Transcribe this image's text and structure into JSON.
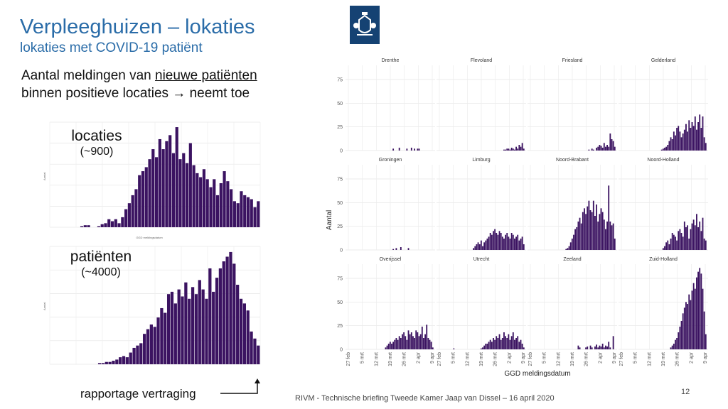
{
  "slide": {
    "title": "Verpleeghuizen – lokaties",
    "subtitle": "lokaties met COVID-19 patiënt",
    "lead_prefix": "Aantal meldingen van ",
    "lead_underlined": "nieuwe patiënten",
    "lead_line2": "binnen positieve locaties → neemt toe",
    "rapportage_label": "rapportage vertraging",
    "footer": "RIVM - Technische briefing Tweede Kamer Jaap van Dissel – 16 april 2020",
    "page_number": "12"
  },
  "colors": {
    "bar": "#3b1361",
    "title": "#2a6ca8",
    "logo": "#154273"
  },
  "chart_data": [
    {
      "type": "bar",
      "id": "locaties",
      "label": "locaties",
      "sublabel": "(~900)",
      "ylabel": "Aantal",
      "xlabel": "GGD meldingsdatum",
      "values": [
        0,
        0,
        0,
        0,
        0,
        0,
        0,
        0,
        0,
        1,
        2,
        2,
        0,
        0,
        1,
        3,
        4,
        8,
        6,
        8,
        4,
        10,
        18,
        24,
        32,
        38,
        52,
        56,
        60,
        68,
        78,
        70,
        88,
        78,
        86,
        92,
        74,
        100,
        68,
        74,
        64,
        84,
        62,
        54,
        50,
        58,
        48,
        40,
        48,
        32,
        44,
        56,
        46,
        38,
        26,
        24,
        36,
        32,
        30,
        28,
        20,
        26
      ]
    },
    {
      "type": "bar",
      "id": "patienten",
      "label": "patiënten",
      "sublabel": "(~4000)",
      "ylabel": "Aantal",
      "xlabel": "",
      "values": [
        0,
        0,
        0,
        0,
        0,
        0,
        0,
        0,
        0,
        0,
        0,
        0,
        0,
        0,
        1,
        1,
        2,
        2,
        3,
        4,
        6,
        7,
        6,
        10,
        14,
        16,
        18,
        26,
        30,
        34,
        32,
        40,
        48,
        44,
        60,
        62,
        52,
        64,
        58,
        70,
        56,
        66,
        60,
        72,
        64,
        56,
        82,
        62,
        74,
        82,
        88,
        92,
        96,
        86,
        68,
        56,
        52,
        46,
        28,
        22,
        16
      ]
    },
    {
      "type": "bar",
      "id": "provinces",
      "ylabel": "Aantal",
      "xlabel": "GGD meldingsdatum",
      "yticks": [
        "0",
        "25",
        "50",
        "75"
      ],
      "xticks": [
        "27 feb",
        "5 mrt",
        "12 mrt",
        "19 mrt",
        "26 mrt",
        "2 apr",
        "9 apr"
      ],
      "panels": [
        {
          "name": "Drenthe",
          "values": [
            0,
            0,
            0,
            0,
            0,
            0,
            0,
            0,
            0,
            0,
            0,
            0,
            0,
            0,
            0,
            0,
            0,
            0,
            0,
            0,
            0,
            0,
            0,
            0,
            0,
            0,
            0,
            0,
            0,
            0,
            2,
            0,
            0,
            0,
            3,
            0,
            0,
            0,
            0,
            2,
            0,
            0,
            3,
            0,
            2,
            0,
            2,
            2,
            0,
            0,
            0,
            0,
            0,
            0,
            0,
            0,
            0
          ]
        },
        {
          "name": "Flevoland",
          "values": [
            0,
            0,
            0,
            0,
            0,
            0,
            0,
            0,
            0,
            0,
            0,
            0,
            0,
            0,
            0,
            0,
            0,
            0,
            0,
            0,
            0,
            0,
            0,
            0,
            0,
            0,
            0,
            0,
            0,
            0,
            0,
            0,
            0,
            0,
            0,
            0,
            0,
            0,
            0,
            0,
            0,
            0,
            0,
            1,
            1,
            2,
            2,
            1,
            3,
            2,
            1,
            4,
            2,
            6,
            4,
            8,
            2
          ]
        },
        {
          "name": "Friesland",
          "values": [
            0,
            0,
            0,
            0,
            0,
            0,
            0,
            0,
            0,
            0,
            0,
            0,
            0,
            0,
            0,
            0,
            0,
            0,
            0,
            0,
            0,
            0,
            0,
            0,
            0,
            0,
            0,
            0,
            0,
            0,
            0,
            0,
            0,
            0,
            0,
            0,
            0,
            0,
            0,
            1,
            0,
            2,
            1,
            0,
            3,
            4,
            6,
            5,
            3,
            8,
            4,
            6,
            4,
            18,
            12,
            10,
            4
          ]
        },
        {
          "name": "Gelderland",
          "values": [
            0,
            0,
            0,
            0,
            0,
            0,
            0,
            0,
            0,
            0,
            0,
            0,
            0,
            0,
            0,
            0,
            0,
            0,
            0,
            0,
            0,
            0,
            0,
            0,
            0,
            0,
            0,
            1,
            2,
            3,
            4,
            6,
            10,
            14,
            12,
            20,
            16,
            24,
            26,
            20,
            14,
            18,
            22,
            28,
            20,
            32,
            24,
            30,
            26,
            36,
            22,
            30,
            38,
            24,
            36,
            14,
            8
          ]
        },
        {
          "name": "Groningen",
          "values": [
            0,
            0,
            0,
            0,
            0,
            0,
            0,
            0,
            0,
            0,
            0,
            0,
            0,
            0,
            0,
            0,
            0,
            0,
            0,
            0,
            0,
            0,
            0,
            0,
            0,
            0,
            0,
            0,
            0,
            0,
            1,
            0,
            2,
            0,
            0,
            3,
            0,
            0,
            0,
            0,
            2,
            0,
            0,
            0,
            0,
            0,
            0,
            0,
            0,
            0,
            0,
            0,
            0,
            0,
            0,
            0,
            0
          ]
        },
        {
          "name": "Limburg",
          "values": [
            0,
            0,
            0,
            0,
            0,
            0,
            0,
            0,
            0,
            0,
            0,
            0,
            0,
            0,
            0,
            0,
            0,
            0,
            0,
            0,
            0,
            0,
            0,
            2,
            4,
            6,
            8,
            6,
            10,
            4,
            8,
            10,
            12,
            14,
            18,
            16,
            20,
            22,
            18,
            16,
            20,
            18,
            14,
            12,
            16,
            18,
            14,
            12,
            18,
            16,
            12,
            14,
            16,
            10,
            12,
            14,
            6
          ]
        },
        {
          "name": "Noord-Brabant",
          "values": [
            0,
            0,
            0,
            0,
            0,
            0,
            0,
            0,
            0,
            0,
            0,
            0,
            0,
            0,
            0,
            0,
            0,
            0,
            0,
            0,
            0,
            0,
            0,
            0,
            1,
            2,
            4,
            8,
            12,
            16,
            22,
            24,
            30,
            34,
            28,
            40,
            44,
            38,
            46,
            52,
            42,
            40,
            52,
            36,
            48,
            30,
            38,
            44,
            40,
            32,
            22,
            30,
            68,
            30,
            26,
            28,
            12
          ]
        },
        {
          "name": "Noord-Holland",
          "values": [
            0,
            0,
            0,
            0,
            0,
            0,
            0,
            0,
            0,
            0,
            0,
            0,
            0,
            0,
            0,
            0,
            0,
            0,
            0,
            0,
            0,
            0,
            0,
            0,
            0,
            0,
            0,
            0,
            2,
            4,
            8,
            10,
            6,
            12,
            18,
            16,
            14,
            10,
            20,
            22,
            18,
            14,
            30,
            24,
            26,
            12,
            22,
            28,
            32,
            26,
            38,
            24,
            30,
            20,
            34,
            12,
            10
          ]
        },
        {
          "name": "Overijssel",
          "values": [
            0,
            0,
            0,
            0,
            0,
            0,
            0,
            0,
            0,
            0,
            0,
            0,
            0,
            0,
            0,
            0,
            0,
            0,
            0,
            0,
            0,
            0,
            0,
            0,
            0,
            2,
            4,
            6,
            8,
            6,
            8,
            10,
            12,
            10,
            14,
            12,
            16,
            18,
            14,
            10,
            20,
            16,
            18,
            14,
            12,
            20,
            18,
            14,
            16,
            24,
            12,
            16,
            26,
            12,
            10,
            8,
            2
          ]
        },
        {
          "name": "Utrecht",
          "values": [
            0,
            0,
            0,
            0,
            0,
            0,
            0,
            0,
            0,
            0,
            1,
            0,
            0,
            0,
            0,
            0,
            0,
            0,
            0,
            0,
            0,
            0,
            0,
            0,
            0,
            0,
            0,
            0,
            1,
            2,
            4,
            6,
            6,
            8,
            10,
            8,
            12,
            10,
            14,
            12,
            16,
            10,
            12,
            18,
            14,
            12,
            16,
            10,
            14,
            18,
            10,
            12,
            14,
            8,
            10,
            6,
            2
          ]
        },
        {
          "name": "Zeeland",
          "values": [
            0,
            0,
            0,
            0,
            0,
            0,
            0,
            0,
            0,
            0,
            0,
            0,
            0,
            0,
            0,
            0,
            0,
            0,
            0,
            0,
            0,
            0,
            0,
            0,
            0,
            0,
            0,
            0,
            0,
            0,
            0,
            0,
            4,
            2,
            0,
            0,
            0,
            2,
            3,
            0,
            4,
            2,
            0,
            3,
            5,
            2,
            4,
            3,
            6,
            2,
            4,
            3,
            8,
            2,
            0,
            14,
            0
          ]
        },
        {
          "name": "Zuid-Holland",
          "values": [
            0,
            0,
            0,
            0,
            0,
            0,
            0,
            0,
            0,
            0,
            0,
            0,
            0,
            0,
            0,
            0,
            0,
            0,
            0,
            0,
            0,
            0,
            0,
            0,
            0,
            0,
            0,
            0,
            0,
            0,
            0,
            0,
            0,
            2,
            4,
            6,
            10,
            12,
            18,
            24,
            30,
            38,
            44,
            50,
            48,
            58,
            52,
            62,
            70,
            64,
            76,
            82,
            86,
            80,
            64,
            40,
            16
          ]
        }
      ]
    }
  ]
}
